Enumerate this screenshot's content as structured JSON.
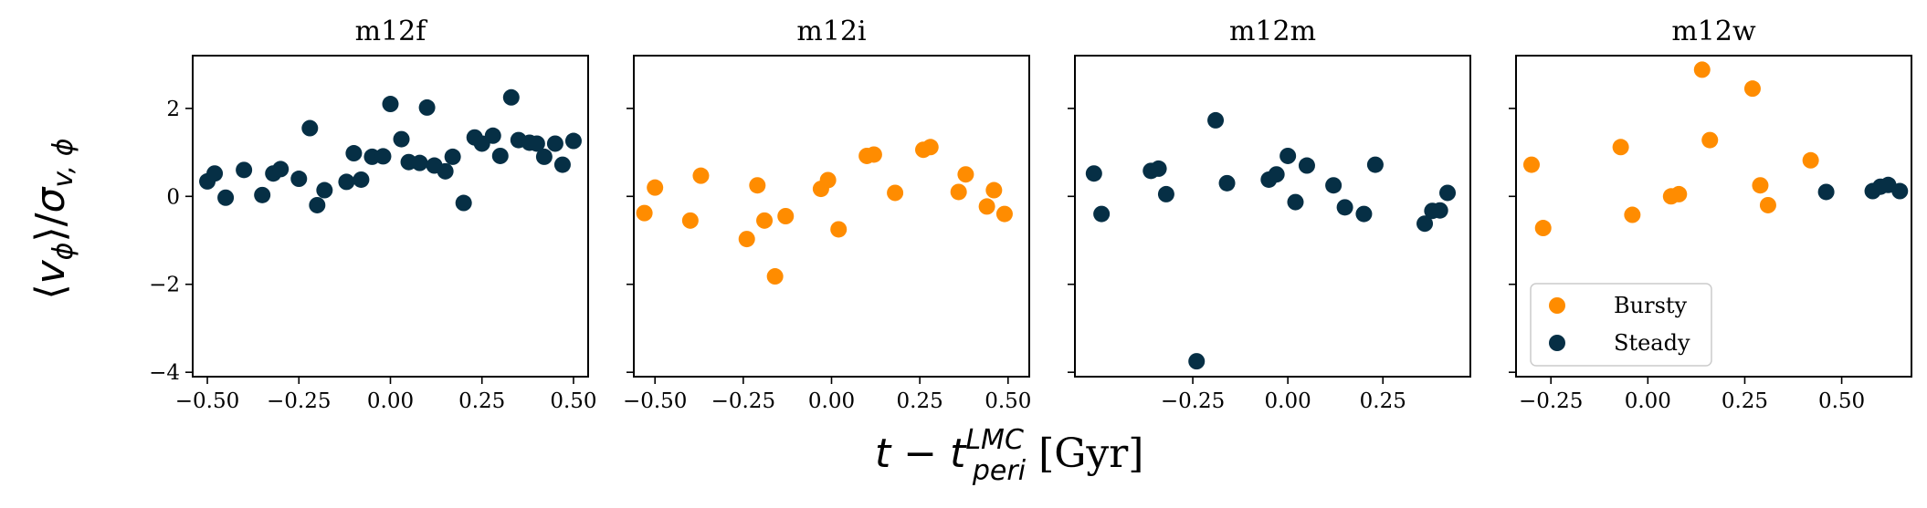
{
  "figure": {
    "ylabel": "⟨vϕ⟩/σv,ϕ",
    "xlabel": "t − t_peri^LMC [Gyr]",
    "xlabel_main": "t − t",
    "xlabel_sup": "LMC",
    "xlabel_sub": "peri",
    "xlabel_unit": "[Gyr]"
  },
  "colors": {
    "bursty": "#FF8C00",
    "steady": "#062F45"
  },
  "chart_data": [
    {
      "type": "scatter",
      "title": "m12f",
      "xlim": [
        -0.54,
        0.54
      ],
      "ylim": [
        -4.1,
        3.2
      ],
      "xticks": [
        -0.5,
        -0.25,
        0.0,
        0.25,
        0.5
      ],
      "xtick_labels": [
        "−0.50",
        "−0.25",
        "0.00",
        "0.25",
        "0.50"
      ],
      "yticks": [
        -4,
        -2,
        0,
        2
      ],
      "ytick_labels": [
        "−4",
        "−2",
        "0",
        "2"
      ],
      "series": [
        {
          "name": "Steady",
          "color": "#062F45",
          "points": [
            [
              -0.5,
              0.34
            ],
            [
              -0.48,
              0.52
            ],
            [
              -0.45,
              -0.03
            ],
            [
              -0.4,
              0.6
            ],
            [
              -0.35,
              0.03
            ],
            [
              -0.32,
              0.52
            ],
            [
              -0.3,
              0.62
            ],
            [
              -0.25,
              0.4
            ],
            [
              -0.22,
              1.55
            ],
            [
              -0.2,
              -0.2
            ],
            [
              -0.18,
              0.14
            ],
            [
              -0.12,
              0.33
            ],
            [
              -0.1,
              0.98
            ],
            [
              -0.08,
              0.38
            ],
            [
              -0.05,
              0.9
            ],
            [
              -0.02,
              0.91
            ],
            [
              0.0,
              2.1
            ],
            [
              0.03,
              1.3
            ],
            [
              0.05,
              0.78
            ],
            [
              0.08,
              0.76
            ],
            [
              0.1,
              2.02
            ],
            [
              0.12,
              0.7
            ],
            [
              0.15,
              0.57
            ],
            [
              0.17,
              0.9
            ],
            [
              0.2,
              -0.15
            ],
            [
              0.23,
              1.34
            ],
            [
              0.25,
              1.2
            ],
            [
              0.28,
              1.38
            ],
            [
              0.3,
              0.92
            ],
            [
              0.33,
              2.25
            ],
            [
              0.35,
              1.28
            ],
            [
              0.38,
              1.22
            ],
            [
              0.4,
              1.2
            ],
            [
              0.42,
              0.9
            ],
            [
              0.45,
              1.2
            ],
            [
              0.47,
              0.72
            ],
            [
              0.5,
              1.26
            ]
          ]
        }
      ]
    },
    {
      "type": "scatter",
      "title": "m12i",
      "xlim": [
        -0.56,
        0.56
      ],
      "ylim": [
        -4.1,
        3.2
      ],
      "xticks": [
        -0.5,
        -0.25,
        0.0,
        0.25,
        0.5
      ],
      "xtick_labels": [
        "−0.50",
        "−0.25",
        "0.00",
        "0.25",
        "0.50"
      ],
      "yticks": [
        -4,
        -2,
        0,
        2
      ],
      "ytick_labels": [
        "",
        "",
        "",
        ""
      ],
      "series": [
        {
          "name": "Bursty",
          "color": "#FF8C00",
          "points": [
            [
              -0.53,
              -0.38
            ],
            [
              -0.5,
              0.2
            ],
            [
              -0.4,
              -0.55
            ],
            [
              -0.37,
              0.47
            ],
            [
              -0.24,
              -0.97
            ],
            [
              -0.21,
              0.25
            ],
            [
              -0.19,
              -0.55
            ],
            [
              -0.16,
              -1.82
            ],
            [
              -0.13,
              -0.45
            ],
            [
              -0.03,
              0.17
            ],
            [
              -0.01,
              0.37
            ],
            [
              0.02,
              -0.75
            ],
            [
              0.1,
              0.92
            ],
            [
              0.12,
              0.95
            ],
            [
              0.18,
              0.08
            ],
            [
              0.26,
              1.06
            ],
            [
              0.28,
              1.12
            ],
            [
              0.36,
              0.1
            ],
            [
              0.38,
              0.5
            ],
            [
              0.44,
              -0.23
            ],
            [
              0.46,
              0.14
            ],
            [
              0.49,
              -0.4
            ]
          ]
        }
      ]
    },
    {
      "type": "scatter",
      "title": "m12m",
      "xlim": [
        -0.56,
        0.48
      ],
      "ylim": [
        -4.1,
        3.2
      ],
      "xticks": [
        -0.25,
        0.0,
        0.25
      ],
      "xtick_labels": [
        "−0.25",
        "0.00",
        "0.25"
      ],
      "yticks": [
        -4,
        -2,
        0,
        2
      ],
      "ytick_labels": [
        "",
        "",
        "",
        ""
      ],
      "series": [
        {
          "name": "Steady",
          "color": "#062F45",
          "points": [
            [
              -0.51,
              0.52
            ],
            [
              -0.49,
              -0.4
            ],
            [
              -0.36,
              0.58
            ],
            [
              -0.34,
              0.63
            ],
            [
              -0.32,
              0.05
            ],
            [
              -0.24,
              -3.75
            ],
            [
              -0.19,
              1.73
            ],
            [
              -0.16,
              0.3
            ],
            [
              -0.05,
              0.38
            ],
            [
              -0.03,
              0.5
            ],
            [
              0.0,
              0.92
            ],
            [
              0.02,
              -0.13
            ],
            [
              0.05,
              0.7
            ],
            [
              0.12,
              0.25
            ],
            [
              0.15,
              -0.25
            ],
            [
              0.2,
              -0.4
            ],
            [
              0.23,
              0.72
            ],
            [
              0.36,
              -0.62
            ],
            [
              0.38,
              -0.33
            ],
            [
              0.4,
              -0.32
            ],
            [
              0.42,
              0.08
            ]
          ]
        }
      ]
    },
    {
      "type": "scatter",
      "title": "m12w",
      "xlim": [
        -0.34,
        0.68
      ],
      "ylim": [
        -4.1,
        3.2
      ],
      "xticks": [
        -0.25,
        0.0,
        0.25,
        0.5
      ],
      "xtick_labels": [
        "−0.25",
        "0.00",
        "0.25",
        "0.50"
      ],
      "yticks": [
        -4,
        -2,
        0,
        2
      ],
      "ytick_labels": [
        "",
        "",
        "",
        ""
      ],
      "legend": {
        "position": "lower-left",
        "entries": [
          "Bursty",
          "Steady"
        ]
      },
      "series": [
        {
          "name": "Bursty",
          "color": "#FF8C00",
          "points": [
            [
              -0.3,
              0.72
            ],
            [
              -0.27,
              -0.72
            ],
            [
              -0.07,
              1.12
            ],
            [
              -0.04,
              -0.42
            ],
            [
              0.06,
              0.0
            ],
            [
              0.08,
              0.05
            ],
            [
              0.14,
              2.88
            ],
            [
              0.16,
              1.28
            ],
            [
              0.27,
              2.45
            ],
            [
              0.29,
              0.25
            ],
            [
              0.31,
              -0.2
            ],
            [
              0.42,
              0.82
            ]
          ]
        },
        {
          "name": "Steady",
          "color": "#062F45",
          "points": [
            [
              0.46,
              0.1
            ],
            [
              0.58,
              0.12
            ],
            [
              0.6,
              0.22
            ],
            [
              0.62,
              0.26
            ],
            [
              0.65,
              0.12
            ]
          ]
        }
      ]
    }
  ]
}
